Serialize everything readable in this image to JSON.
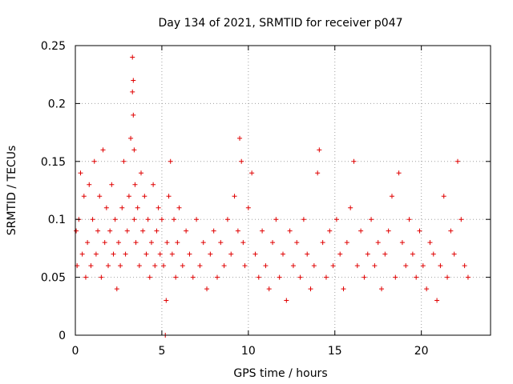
{
  "chart_data": {
    "type": "scatter",
    "title": "Day 134 of 2021, SRMTID for receiver p047",
    "xlabel": "GPS time / hours",
    "ylabel": "SRMTID / TECUs",
    "xlim": [
      0,
      24
    ],
    "ylim": [
      0,
      0.25
    ],
    "xticks": [
      0,
      5,
      10,
      15,
      20
    ],
    "xtick_labels": [
      "0",
      "5",
      "10",
      "15",
      "20"
    ],
    "yticks": [
      0,
      0.05,
      0.1,
      0.15,
      0.2,
      0.25
    ],
    "ytick_labels": [
      "0",
      "0.05",
      "0.1",
      "0.15",
      "0.2",
      "0.25"
    ],
    "grid": true,
    "marker": "+",
    "marker_color": "#e00000",
    "series": [
      {
        "name": "SRMTID",
        "x": [
          0.05,
          0.1,
          0.2,
          0.3,
          0.4,
          0.5,
          0.6,
          0.7,
          0.8,
          0.9,
          1.0,
          1.1,
          1.2,
          1.3,
          1.4,
          1.5,
          1.6,
          1.7,
          1.8,
          1.9,
          2.0,
          2.1,
          2.2,
          2.3,
          2.4,
          2.5,
          2.6,
          2.7,
          2.8,
          2.9,
          3.0,
          3.1,
          3.2,
          3.3,
          3.3,
          3.35,
          3.35,
          3.4,
          3.4,
          3.45,
          3.5,
          3.6,
          3.7,
          3.8,
          3.9,
          4.0,
          4.1,
          4.2,
          4.3,
          4.4,
          4.5,
          4.6,
          4.7,
          4.8,
          4.9,
          5.0,
          5.1,
          5.2,
          5.25,
          5.3,
          5.4,
          5.5,
          5.6,
          5.7,
          5.8,
          5.9,
          6.0,
          6.2,
          6.4,
          6.6,
          6.8,
          7.0,
          7.2,
          7.4,
          7.6,
          7.8,
          8.0,
          8.2,
          8.4,
          8.6,
          8.8,
          9.0,
          9.2,
          9.4,
          9.5,
          9.6,
          9.7,
          9.8,
          10.0,
          10.2,
          10.4,
          10.6,
          10.8,
          11.0,
          11.2,
          11.4,
          11.6,
          11.8,
          12.0,
          12.2,
          12.4,
          12.6,
          12.8,
          13.0,
          13.2,
          13.4,
          13.6,
          13.8,
          14.0,
          14.1,
          14.3,
          14.5,
          14.7,
          14.9,
          15.1,
          15.3,
          15.5,
          15.7,
          15.9,
          16.1,
          16.3,
          16.5,
          16.7,
          16.9,
          17.1,
          17.3,
          17.5,
          17.7,
          17.9,
          18.1,
          18.3,
          18.5,
          18.7,
          18.9,
          19.1,
          19.3,
          19.5,
          19.7,
          19.9,
          20.1,
          20.3,
          20.5,
          20.7,
          20.9,
          21.1,
          21.3,
          21.5,
          21.7,
          21.9,
          22.1,
          22.3,
          22.5,
          22.7
        ],
        "y": [
          0.09,
          0.06,
          0.1,
          0.14,
          0.07,
          0.12,
          0.05,
          0.08,
          0.13,
          0.06,
          0.1,
          0.15,
          0.07,
          0.09,
          0.12,
          0.05,
          0.16,
          0.08,
          0.11,
          0.06,
          0.09,
          0.13,
          0.07,
          0.1,
          0.04,
          0.08,
          0.06,
          0.11,
          0.15,
          0.07,
          0.09,
          0.12,
          0.17,
          0.24,
          0.21,
          0.22,
          0.19,
          0.16,
          0.1,
          0.13,
          0.08,
          0.11,
          0.06,
          0.14,
          0.09,
          0.12,
          0.07,
          0.1,
          0.05,
          0.08,
          0.13,
          0.06,
          0.09,
          0.11,
          0.07,
          0.1,
          0.06,
          0.0,
          0.03,
          0.08,
          0.12,
          0.15,
          0.07,
          0.1,
          0.05,
          0.08,
          0.11,
          0.06,
          0.09,
          0.07,
          0.05,
          0.1,
          0.06,
          0.08,
          0.04,
          0.07,
          0.09,
          0.05,
          0.08,
          0.06,
          0.1,
          0.07,
          0.12,
          0.09,
          0.17,
          0.15,
          0.08,
          0.06,
          0.11,
          0.14,
          0.07,
          0.05,
          0.09,
          0.06,
          0.04,
          0.08,
          0.1,
          0.05,
          0.07,
          0.03,
          0.09,
          0.06,
          0.08,
          0.05,
          0.1,
          0.07,
          0.04,
          0.06,
          0.14,
          0.16,
          0.08,
          0.05,
          0.09,
          0.06,
          0.1,
          0.07,
          0.04,
          0.08,
          0.11,
          0.15,
          0.06,
          0.09,
          0.05,
          0.07,
          0.1,
          0.06,
          0.08,
          0.04,
          0.07,
          0.09,
          0.12,
          0.05,
          0.14,
          0.08,
          0.06,
          0.1,
          0.07,
          0.05,
          0.09,
          0.06,
          0.04,
          0.08,
          0.07,
          0.03,
          0.06,
          0.12,
          0.05,
          0.09,
          0.07,
          0.15,
          0.1,
          0.06,
          0.05
        ]
      }
    ]
  }
}
